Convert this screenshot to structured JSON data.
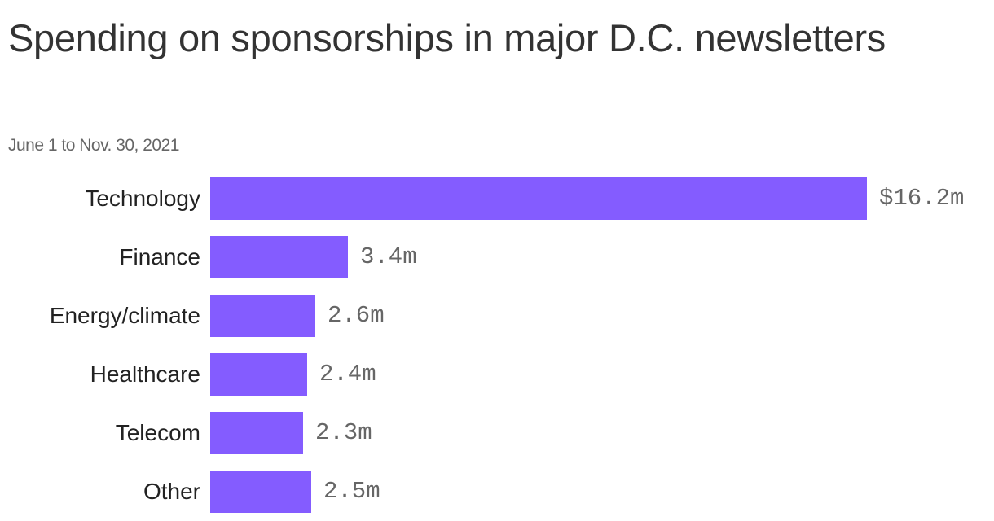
{
  "title": "Spending on sponsorships in major D.C. newsletters",
  "subtitle": "June 1 to Nov. 30, 2021",
  "colors": {
    "bar": "#845cff",
    "label": "#222222",
    "value": "#666666"
  },
  "rows": [
    {
      "label": "Technology",
      "value": 16.2,
      "display": "$16.2m"
    },
    {
      "label": "Finance",
      "value": 3.4,
      "display": "3.4m"
    },
    {
      "label": "Energy/climate",
      "value": 2.6,
      "display": "2.6m"
    },
    {
      "label": "Healthcare",
      "value": 2.4,
      "display": "2.4m"
    },
    {
      "label": "Telecom",
      "value": 2.3,
      "display": "2.3m"
    },
    {
      "label": "Other",
      "value": 2.5,
      "display": "2.5m"
    }
  ],
  "chart_data": {
    "type": "bar",
    "orientation": "horizontal",
    "title": "Spending on sponsorships in major D.C. newsletters",
    "subtitle": "June 1 to Nov. 30, 2021",
    "categories": [
      "Technology",
      "Finance",
      "Energy/climate",
      "Healthcare",
      "Telecom",
      "Other"
    ],
    "values": [
      16.2,
      3.4,
      2.6,
      2.4,
      2.3,
      2.5
    ],
    "data_labels": [
      "$16.2m",
      "3.4m",
      "2.6m",
      "2.4m",
      "2.3m",
      "2.5m"
    ],
    "xlabel": "",
    "ylabel": "",
    "unit": "million USD",
    "grid": false,
    "legend": null
  }
}
